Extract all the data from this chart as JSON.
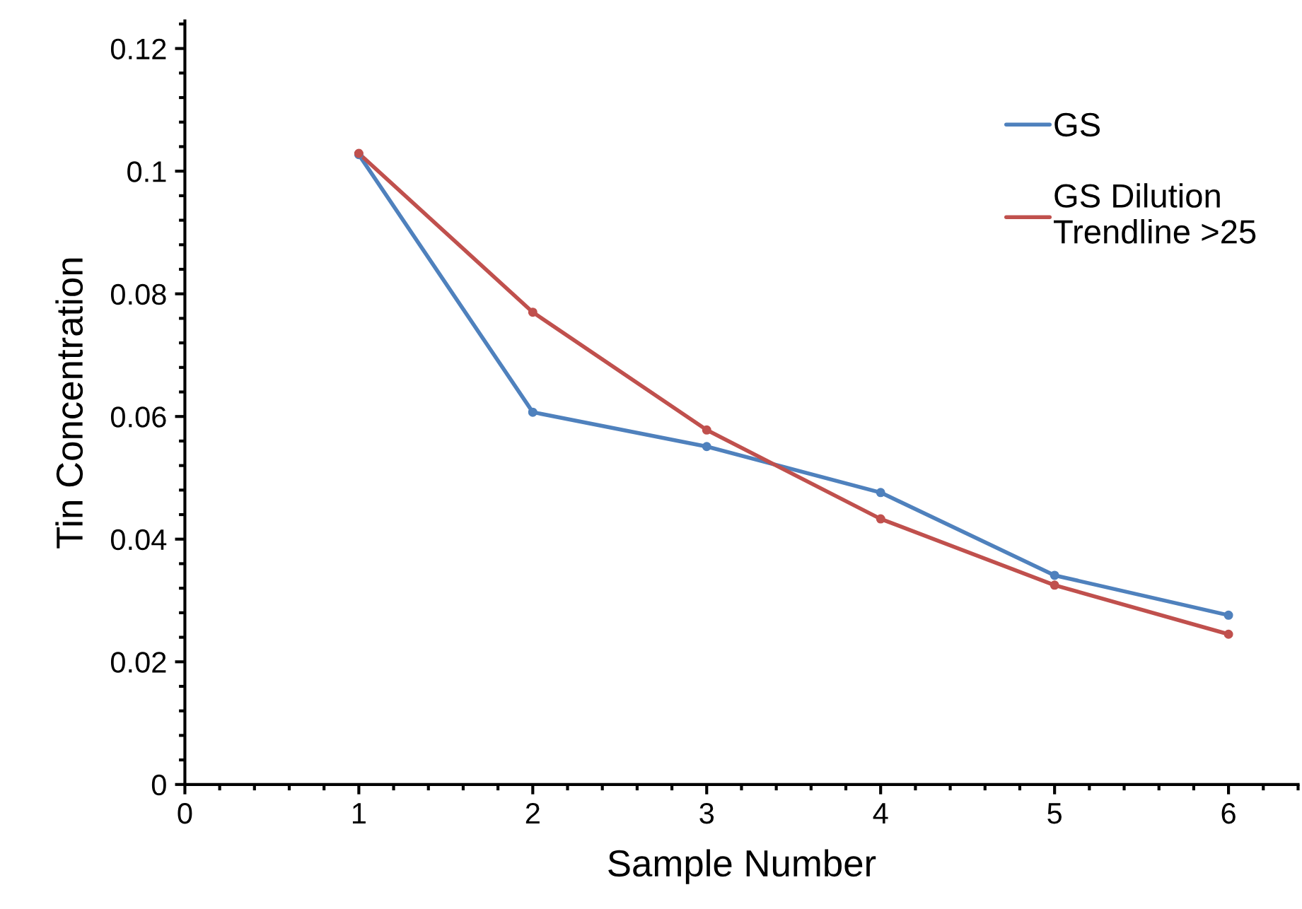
{
  "chart_data": {
    "type": "line",
    "xlabel": "Sample Number",
    "ylabel": "Tin Concentration",
    "x": [
      1,
      2,
      3,
      4,
      5,
      6
    ],
    "series": [
      {
        "name": "GS",
        "color": "#4f81bd",
        "values": [
          0.1027,
          0.0607,
          0.0551,
          0.0476,
          0.0341,
          0.0276
        ]
      },
      {
        "name": "GS Dilution\nTrendline >25",
        "color": "#c0504d",
        "values": [
          0.1029,
          0.077,
          0.0578,
          0.0433,
          0.0325,
          0.0245
        ]
      }
    ],
    "xlim": [
      0,
      6.4
    ],
    "xticks": [
      0,
      1,
      2,
      3,
      4,
      5,
      6
    ],
    "ylim": [
      0,
      0.1245
    ],
    "yticks": [
      0,
      0.02,
      0.04,
      0.06,
      0.08,
      0.1,
      0.12
    ],
    "grid": false,
    "legend": "top right",
    "marker": "circle",
    "line_style": "solid"
  }
}
